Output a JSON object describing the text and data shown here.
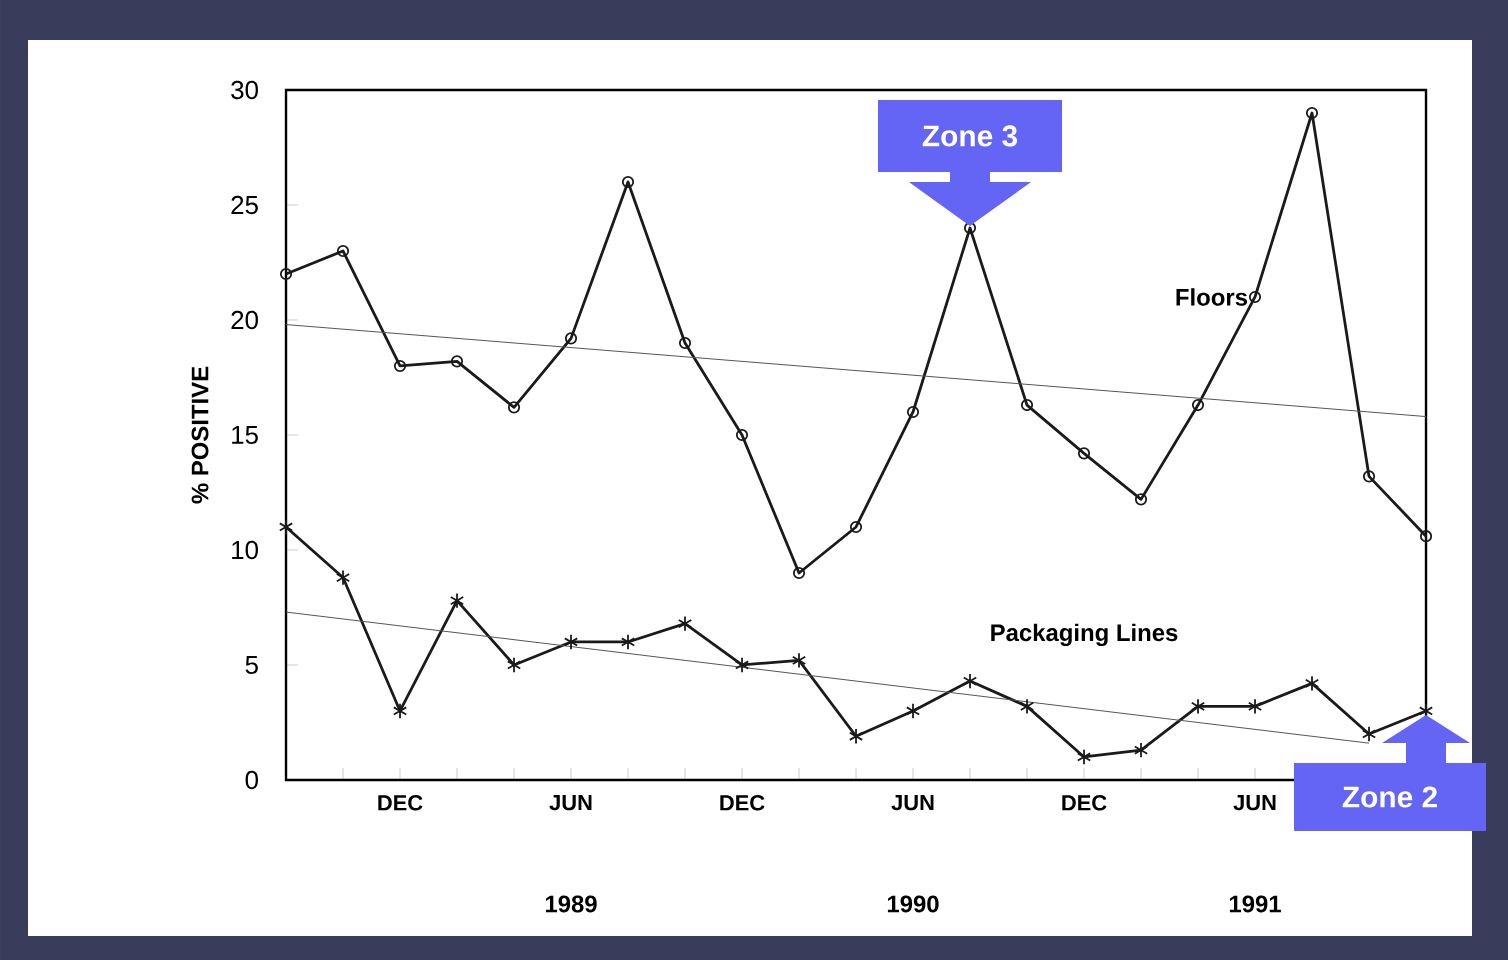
{
  "chart_data": {
    "type": "line",
    "ylabel": "% POSITIVE",
    "x": [
      "1988-08",
      "1988-10",
      "1988-12",
      "1989-02",
      "1989-04",
      "1989-06",
      "1989-08",
      "1989-10",
      "1989-12",
      "1990-02",
      "1990-04",
      "1990-06",
      "1990-08",
      "1990-10",
      "1990-12",
      "1991-02",
      "1991-04",
      "1991-06",
      "1991-08",
      "1991-10",
      "1991-12"
    ],
    "series": [
      {
        "name": "Floors",
        "color": "#1a1a1a",
        "marker": "circle",
        "values": [
          22,
          23,
          18,
          18.2,
          16.2,
          19.2,
          26,
          19,
          15,
          9,
          11,
          16,
          24,
          16.3,
          14.2,
          12.2,
          16.3,
          21,
          29,
          13.2,
          10.6
        ]
      },
      {
        "name": "Packaging Lines",
        "color": "#1a1a1a",
        "marker": "cross",
        "values": [
          11,
          8.8,
          3,
          7.8,
          5,
          6,
          6,
          6.8,
          5,
          5.2,
          1.9,
          3,
          4.3,
          3.2,
          1,
          1.3,
          3.2,
          3.2,
          4.2,
          2,
          3
        ]
      },
      {
        "type": "line",
        "color": "#555555",
        "marker": "none",
        "x": [
          "1988-08",
          "1991-12"
        ],
        "values": [
          19.8,
          15.8
        ]
      },
      {
        "type": "line",
        "color": "#555555",
        "marker": "none",
        "x": [
          "1988-08",
          "1991-10"
        ],
        "values": [
          7.3,
          1.6
        ]
      }
    ],
    "xlim": [
      "1988-08",
      "1991-12"
    ],
    "xticks": [
      {
        "value": "1988-10",
        "label": null
      },
      {
        "value": "1988-12",
        "label": "DEC"
      },
      {
        "value": "1989-02",
        "label": null
      },
      {
        "value": "1989-04",
        "label": null
      },
      {
        "value": "1989-06",
        "label": "JUN"
      },
      {
        "value": "1989-08",
        "label": null
      },
      {
        "value": "1989-10",
        "label": null
      },
      {
        "value": "1989-12",
        "label": "DEC"
      },
      {
        "value": "1990-02",
        "label": null
      },
      {
        "value": "1990-04",
        "label": null
      },
      {
        "value": "1990-06",
        "label": "JUN"
      },
      {
        "value": "1990-08",
        "label": null
      },
      {
        "value": "1990-10",
        "label": null
      },
      {
        "value": "1990-12",
        "label": "DEC"
      },
      {
        "value": "1991-02",
        "label": null
      },
      {
        "value": "1991-04",
        "label": null
      },
      {
        "value": "1991-06",
        "label": "JUN"
      },
      {
        "value": "1991-08",
        "label": null
      },
      {
        "value": "1991-10",
        "label": null
      }
    ],
    "ylim": [
      0,
      30
    ],
    "yticks": [
      0,
      5,
      10,
      15,
      20,
      25,
      30
    ],
    "annotations": [
      "1989",
      "1990",
      "1991",
      {
        "text": "Zone 3",
        "x": "1990-08",
        "y": 24
      },
      {
        "text": "Zone 2",
        "x": "1991-12",
        "y": 3
      }
    ],
    "grid": false
  }
}
